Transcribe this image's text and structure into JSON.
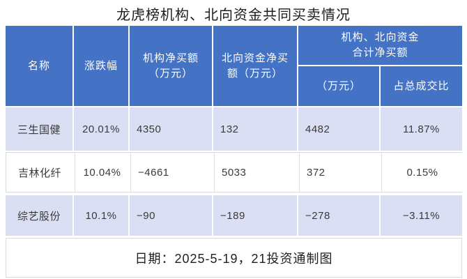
{
  "title": "龙虎榜机构、北向资金共同买卖情况",
  "header": {
    "col_name": "名称",
    "col_change": "涨跌幅",
    "col_inst_line1": "机构净买额",
    "col_inst_line2": "（万元）",
    "col_north_line1": "北向资金净买",
    "col_north_line2": "额（万元）",
    "group_line1": "机构、北向资金",
    "group_line2": "合计净买额",
    "sub_wan": "（万元）",
    "sub_ratio": "占总成交比"
  },
  "rows": [
    {
      "name": "三生国健",
      "change": "20.01%",
      "inst": "4350",
      "north": "132",
      "total": "4482",
      "ratio": "11.87%"
    },
    {
      "name": "吉林化纤",
      "change": "10.04%",
      "inst": "−4661",
      "north": "5033",
      "total": "372",
      "ratio": "0.15%"
    },
    {
      "name": "综艺股份",
      "change": "10.1%",
      "inst": "−90",
      "north": "−189",
      "total": "−278",
      "ratio": "−3.11%"
    }
  ],
  "footer": {
    "note": "日期：2025-5-19，21投资通制图"
  },
  "colors": {
    "header_bg": "#4472C4",
    "header_text": "#FFFFFF",
    "row_alt_bg": "#DBDFF3",
    "row_white_bg": "#FFFFFF",
    "border_gray": "#D9D9DE",
    "body_text": "#3A3A3A",
    "title_text": "#1C1C1C"
  },
  "chart_data": {
    "type": "table",
    "title": "龙虎榜机构、北向资金共同买卖情况",
    "columns": [
      "名称",
      "涨跌幅",
      "机构净买额（万元）",
      "北向资金净买额（万元）",
      "机构、北向资金合计净买额（万元）",
      "机构、北向资金合计净买额占总成交比"
    ],
    "rows": [
      [
        "三生国健",
        "20.01%",
        4350,
        132,
        4482,
        "11.87%"
      ],
      [
        "吉林化纤",
        "10.04%",
        -4661,
        5033,
        372,
        "0.15%"
      ],
      [
        "综艺股份",
        "10.1%",
        -90,
        -189,
        -278,
        "-3.11%"
      ]
    ],
    "note": "日期：2025-5-19，21投资通制图",
    "layout": {
      "alt_row_shading": true,
      "header_bg": "#4472C4",
      "grouped_last_two_columns": true
    }
  }
}
